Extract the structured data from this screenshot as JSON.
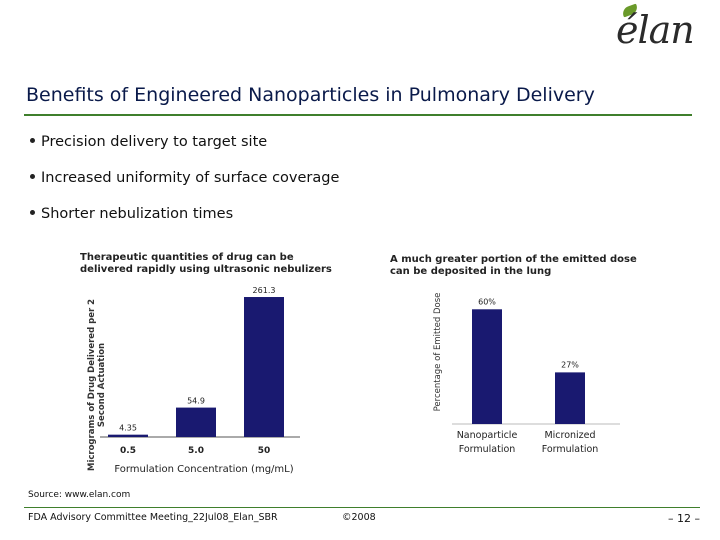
{
  "logo": {
    "text": "élan"
  },
  "slide": {
    "title": "Benefits of Engineered Nanoparticles in Pulmonary Delivery",
    "bullets": [
      "Precision delivery to target site",
      "Increased uniformity of surface coverage",
      "Shorter nebulization times"
    ]
  },
  "colors": {
    "bar": "#191970",
    "rule": "#3f7f2c",
    "title": "#0a1a4a"
  },
  "chart_data": [
    {
      "type": "bar",
      "title": "",
      "caption_line1": "Therapeutic quantities of drug can be",
      "caption_line2": "delivered rapidly using ultrasonic nebulizers",
      "ylabel_line1": "Micrograms of Drug Delivered per 2",
      "ylabel_line2": "Second Actuation",
      "xlabel": "Formulation Concentration (mg/mL)",
      "categories": [
        "0.5",
        "5.0",
        "50"
      ],
      "values": [
        4.35,
        54.9,
        261.3
      ],
      "value_labels": [
        "4.35",
        "54.9",
        "261.3"
      ],
      "ylim": [
        0,
        280
      ],
      "grid": false,
      "legend": "none"
    },
    {
      "type": "bar",
      "title": "",
      "caption_line1": "A much greater portion of the emitted dose",
      "caption_line2": "can be deposited in the lung",
      "ylabel": "Percentage of Emitted Dose",
      "categories_line1": [
        "Nanoparticle",
        "Micronized"
      ],
      "categories_line2": [
        "Formulation",
        "Formulation"
      ],
      "values": [
        60,
        27
      ],
      "value_labels": [
        "60%",
        "27%"
      ],
      "ylim": [
        0,
        68
      ],
      "grid": false,
      "legend": "none"
    }
  ],
  "footer": {
    "source": "Source: www.elan.com",
    "meeting": "FDA Advisory Committee Meeting_22Jul08_Elan_SBR",
    "copyright": "©2008",
    "page": "– 12 –"
  }
}
